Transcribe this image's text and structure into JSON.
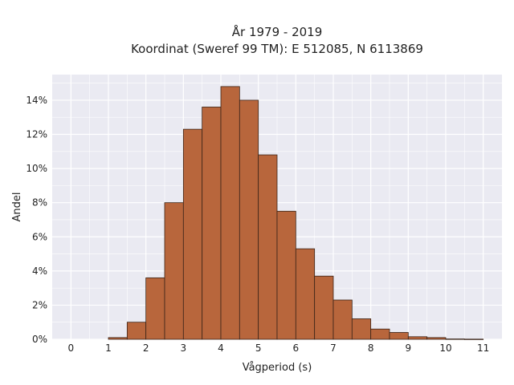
{
  "chart_data": {
    "type": "bar",
    "title_line1": "År 1979 - 2019",
    "title_line2": "Koordinat (Sweref 99 TM): E 512085, N 6113869",
    "xlabel": "Vågperiod (s)",
    "ylabel": "Andel",
    "x_ticks": [
      "0",
      "1",
      "2",
      "3",
      "4",
      "5",
      "6",
      "7",
      "8",
      "9",
      "10",
      "11"
    ],
    "y_ticks": [
      "0%",
      "2%",
      "4%",
      "6%",
      "8%",
      "10%",
      "12%",
      "14%"
    ],
    "xlim": [
      -0.5,
      11.5
    ],
    "ylim": [
      0,
      15.5
    ],
    "bin_width": 0.5,
    "bins": [
      {
        "start": 1.0,
        "value": 0.1
      },
      {
        "start": 1.5,
        "value": 1.0
      },
      {
        "start": 2.0,
        "value": 3.6
      },
      {
        "start": 2.5,
        "value": 8.0
      },
      {
        "start": 3.0,
        "value": 12.3
      },
      {
        "start": 3.5,
        "value": 13.6
      },
      {
        "start": 4.0,
        "value": 14.8
      },
      {
        "start": 4.5,
        "value": 14.0
      },
      {
        "start": 5.0,
        "value": 10.8
      },
      {
        "start": 5.5,
        "value": 7.5
      },
      {
        "start": 6.0,
        "value": 5.3
      },
      {
        "start": 6.5,
        "value": 3.7
      },
      {
        "start": 7.0,
        "value": 2.3
      },
      {
        "start": 7.5,
        "value": 1.2
      },
      {
        "start": 8.0,
        "value": 0.6
      },
      {
        "start": 8.5,
        "value": 0.4
      },
      {
        "start": 9.0,
        "value": 0.15
      },
      {
        "start": 9.5,
        "value": 0.1
      },
      {
        "start": 10.0,
        "value": 0.02
      },
      {
        "start": 10.5,
        "value": 0.01
      }
    ],
    "grid": true,
    "colors": {
      "bar_fill": "#b8663c",
      "bar_edge": "#3a2418",
      "plot_bg": "#eaeaf2",
      "grid": "#ffffff"
    }
  }
}
